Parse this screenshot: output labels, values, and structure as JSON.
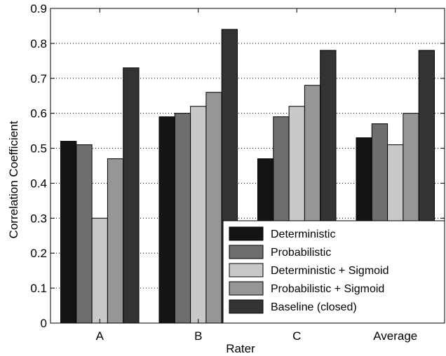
{
  "chart_data": {
    "type": "bar",
    "title": "",
    "xlabel": "Rater",
    "ylabel": "Correlation Coefficient",
    "categories": [
      "A",
      "B",
      "C",
      "Average"
    ],
    "ylim": [
      0,
      0.9
    ],
    "yticks": [
      "0",
      "0.1",
      "0.2",
      "0.3",
      "0.4",
      "0.5",
      "0.6",
      "0.7",
      "0.8",
      "0.9"
    ],
    "grid": "horizontal dotted",
    "legend_position": "bottom-right",
    "series": [
      {
        "name": "Deterministic",
        "color": "#141414",
        "values": [
          0.52,
          0.59,
          0.47,
          0.53
        ]
      },
      {
        "name": "Probabilistic",
        "color": "#6e6e6e",
        "values": [
          0.51,
          0.6,
          0.59,
          0.57
        ]
      },
      {
        "name": "Deterministic + Sigmoid",
        "color": "#c8c8c8",
        "values": [
          0.3,
          0.62,
          0.62,
          0.51
        ]
      },
      {
        "name": "Probabilistic + Sigmoid",
        "color": "#969696",
        "values": [
          0.47,
          0.66,
          0.68,
          0.6
        ]
      },
      {
        "name": "Baseline (closed)",
        "color": "#333333",
        "values": [
          0.73,
          0.84,
          0.78,
          0.78
        ]
      }
    ]
  }
}
